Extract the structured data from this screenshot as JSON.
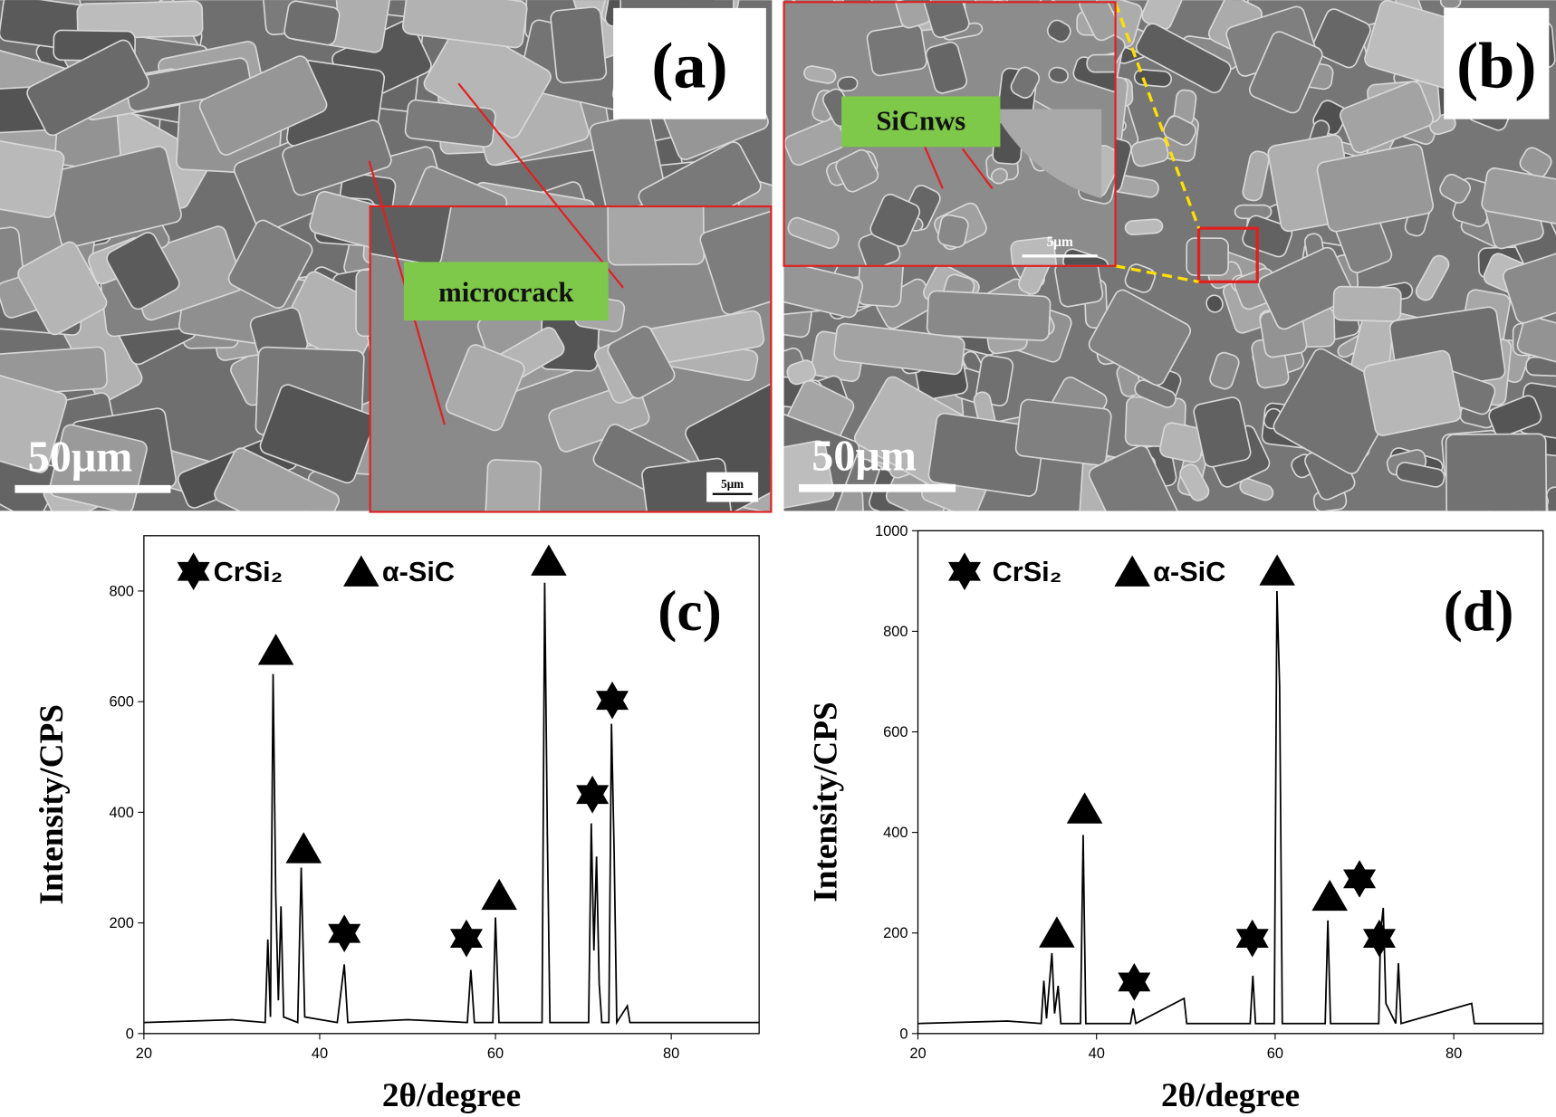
{
  "panels": [
    {
      "label": "(a)",
      "annotation": "microcrack",
      "scale_bar": "50μm",
      "inset_scale_bar": "5μm"
    },
    {
      "label": "(b)",
      "annotation": "SiCnws",
      "scale_bar": "50μm",
      "inset_scale_bar": "5μm"
    }
  ],
  "chart_data": [
    {
      "type": "line",
      "panel_label": "(c)",
      "x_label": "2θ/degree",
      "y_label": "Intensity/CPS",
      "legend_entries": [
        "CrSi₂",
        "α-SiC"
      ],
      "xlim": [
        20,
        90
      ],
      "ylim": [
        0,
        900
      ],
      "xticks": [
        20,
        40,
        60,
        80
      ],
      "yticks": [
        0,
        200,
        400,
        600,
        800
      ],
      "grid": false,
      "series": [
        {
          "color": "#000000",
          "x": [
            20,
            30,
            33.8,
            34.1,
            34.4,
            34.7,
            35.0,
            35.3,
            35.6,
            35.9,
            37.5,
            37.9,
            38.3,
            42,
            42.8,
            43.2,
            50,
            56.8,
            57.2,
            57.6,
            59.7,
            60.0,
            60.4,
            65.3,
            65.6,
            65.9,
            66.2,
            70.6,
            70.9,
            71.2,
            71.5,
            71.8,
            72.1,
            72.9,
            73.2,
            73.5,
            73.8,
            75,
            75.3,
            90
          ],
          "values": [
            20,
            25,
            20,
            170,
            30,
            650,
            250,
            60,
            230,
            30,
            20,
            300,
            30,
            20,
            125,
            20,
            25,
            20,
            115,
            20,
            20,
            210,
            20,
            20,
            815,
            365,
            20,
            20,
            380,
            150,
            320,
            90,
            20,
            20,
            560,
            330,
            20,
            50,
            20,
            20
          ]
        }
      ]
    },
    {
      "type": "line",
      "panel_label": "(d)",
      "x_label": "2θ/degree",
      "y_label": "Intensity/CPS",
      "legend_entries": [
        "CrSi₂",
        "α-SiC"
      ],
      "xlim": [
        20,
        90
      ],
      "ylim": [
        0,
        1000
      ],
      "xticks": [
        20,
        40,
        60,
        80
      ],
      "yticks": [
        0,
        200,
        400,
        600,
        800,
        1000
      ],
      "grid": false,
      "series": [
        {
          "color": "#000000",
          "x": [
            20,
            30,
            33.8,
            34.1,
            34.4,
            35.0,
            35.3,
            35.7,
            36,
            38.2,
            38.5,
            38.8,
            43.8,
            44.1,
            44.4,
            49.8,
            50.1,
            57.2,
            57.5,
            57.8,
            59.9,
            60.2,
            60.5,
            60.8,
            65.6,
            65.9,
            66.2,
            71.6,
            71.8,
            72.1,
            72.4,
            73.5,
            73.8,
            74.1,
            82,
            82.3,
            90
          ],
          "values": [
            20,
            25,
            20,
            105,
            30,
            160,
            40,
            95,
            20,
            20,
            395,
            20,
            20,
            50,
            20,
            70,
            20,
            20,
            115,
            20,
            20,
            880,
            690,
            20,
            20,
            225,
            20,
            20,
            200,
            250,
            60,
            20,
            140,
            20,
            60,
            20,
            20
          ]
        }
      ]
    }
  ]
}
